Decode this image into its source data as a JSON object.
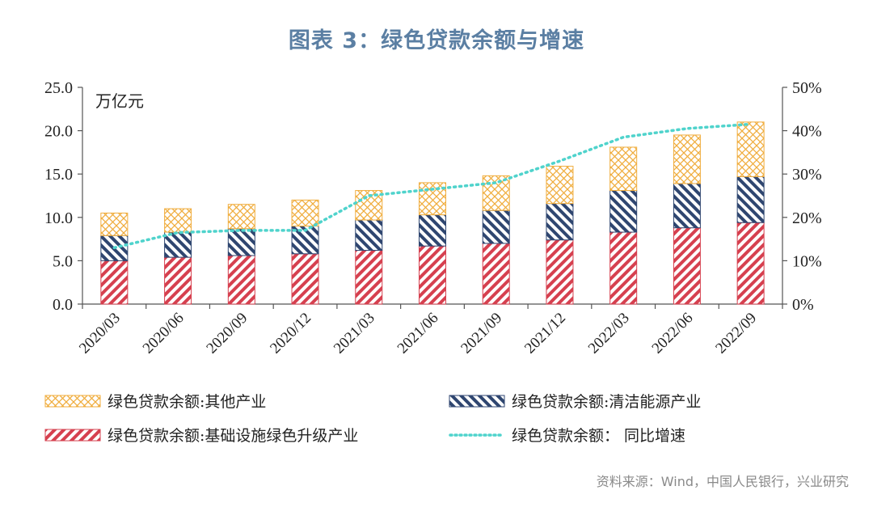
{
  "header": {
    "title": "图表 3：绿色贷款余额与增速"
  },
  "footer": {
    "source": "资料来源：Wind，中国人民银行，兴业研究"
  },
  "chart_data": {
    "type": "bar",
    "stacked": true,
    "categories": [
      "2020/03",
      "2020/06",
      "2020/09",
      "2020/12",
      "2021/03",
      "2021/06",
      "2021/09",
      "2021/12",
      "2022/03",
      "2022/06",
      "2022/09"
    ],
    "unit_label": "万亿元",
    "ylim": [
      0,
      25
    ],
    "yticks": [
      "0.0",
      "5.0",
      "10.0",
      "15.0",
      "20.0",
      "25.0"
    ],
    "y2lim": [
      0,
      50
    ],
    "y2ticks": [
      "0%",
      "10%",
      "20%",
      "30%",
      "40%",
      "50%"
    ],
    "series": [
      {
        "name": "绿色贷款余额:基础设施绿色升级产业",
        "kind": "bar",
        "color": "#d6404f",
        "values": [
          5.0,
          5.4,
          5.6,
          5.8,
          6.2,
          6.7,
          7.0,
          7.4,
          8.3,
          8.8,
          9.4
        ]
      },
      {
        "name": "绿色贷款余额:清洁能源产业",
        "kind": "bar",
        "color": "#2f4670",
        "values": [
          2.9,
          2.9,
          3.1,
          3.2,
          3.5,
          3.6,
          3.8,
          4.2,
          4.8,
          5.1,
          5.3
        ]
      },
      {
        "name": "绿色贷款余额:其他产业",
        "kind": "bar",
        "color": "#f0ad3e",
        "values": [
          2.6,
          2.7,
          2.8,
          3.0,
          3.4,
          3.7,
          4.0,
          4.3,
          5.0,
          5.6,
          6.3
        ]
      },
      {
        "name": "绿色贷款余额： 同比增速",
        "kind": "line",
        "axis": "right",
        "color": "#4fd3cc",
        "values": [
          13.0,
          16.5,
          17.0,
          17.0,
          25.0,
          26.5,
          28.0,
          33.0,
          38.5,
          40.5,
          41.5
        ]
      }
    ],
    "legend": {
      "position": "bottom",
      "columns": 2
    },
    "grid": false
  }
}
